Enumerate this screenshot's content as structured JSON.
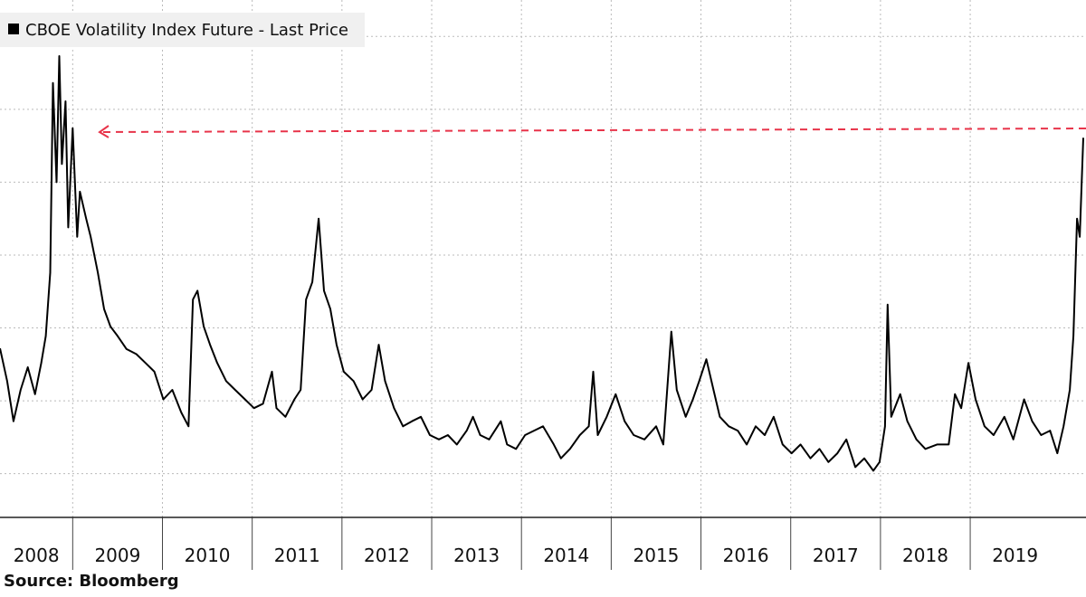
{
  "chart_data": {
    "type": "line",
    "legend": "top-left",
    "source": "Source: Bloomberg",
    "grid": true,
    "xlim": [
      2008.19,
      2020.29
    ],
    "ylim": [
      4,
      75
    ],
    "yticks": [
      10,
      20,
      30,
      40,
      50,
      60,
      70
    ],
    "xticks": [
      {
        "value": 2008,
        "label": "2008"
      },
      {
        "value": 2009,
        "label": "2009"
      },
      {
        "value": 2010,
        "label": "2010"
      },
      {
        "value": 2011,
        "label": "2011"
      },
      {
        "value": 2012,
        "label": "2012"
      },
      {
        "value": 2013,
        "label": "2013"
      },
      {
        "value": 2014,
        "label": "2014"
      },
      {
        "value": 2015,
        "label": "2015"
      },
      {
        "value": 2016,
        "label": "2016"
      },
      {
        "value": 2017,
        "label": "2017"
      },
      {
        "value": 2018,
        "label": "2018"
      },
      {
        "value": 2019,
        "label": "2019"
      }
    ],
    "x": [
      2008.19,
      2008.27,
      2008.34,
      2008.42,
      2008.5,
      2008.58,
      2008.65,
      2008.7,
      2008.75,
      2008.78,
      2008.82,
      2008.85,
      2008.88,
      2008.92,
      2008.95,
      2009.0,
      2009.05,
      2009.08,
      2009.15,
      2009.2,
      2009.28,
      2009.35,
      2009.42,
      2009.5,
      2009.6,
      2009.71,
      2009.81,
      2009.91,
      2010.01,
      2010.11,
      2010.21,
      2010.29,
      2010.34,
      2010.39,
      2010.46,
      2010.53,
      2010.61,
      2010.71,
      2010.81,
      2010.92,
      2011.02,
      2011.12,
      2011.22,
      2011.27,
      2011.37,
      2011.47,
      2011.54,
      2011.6,
      2011.67,
      2011.74,
      2011.8,
      2011.87,
      2011.94,
      2012.02,
      2012.13,
      2012.23,
      2012.33,
      2012.41,
      2012.48,
      2012.58,
      2012.68,
      2012.78,
      2012.88,
      2012.98,
      2013.08,
      2013.18,
      2013.28,
      2013.39,
      2013.46,
      2013.54,
      2013.64,
      2013.77,
      2013.84,
      2013.94,
      2014.04,
      2014.14,
      2014.24,
      2014.36,
      2014.44,
      2014.54,
      2014.65,
      2014.75,
      2014.8,
      2014.85,
      2014.95,
      2015.05,
      2015.15,
      2015.25,
      2015.37,
      2015.5,
      2015.58,
      2015.63,
      2015.67,
      2015.73,
      2015.83,
      2015.91,
      2015.98,
      2016.06,
      2016.14,
      2016.21,
      2016.31,
      2016.41,
      2016.51,
      2016.61,
      2016.71,
      2016.81,
      2016.91,
      2017.01,
      2017.11,
      2017.22,
      2017.32,
      2017.42,
      2017.52,
      2017.62,
      2017.72,
      2017.82,
      2017.92,
      2017.99,
      2018.05,
      2018.08,
      2018.12,
      2018.22,
      2018.3,
      2018.4,
      2018.5,
      2018.63,
      2018.76,
      2018.83,
      2018.9,
      2018.98,
      2019.06,
      2019.16,
      2019.26,
      2019.38,
      2019.48,
      2019.6,
      2019.69,
      2019.79,
      2019.89,
      2019.97,
      2020.04,
      2020.11,
      2020.15,
      2020.19,
      2020.22,
      2020.26
    ],
    "series": [
      {
        "name": "CBOE Volatility Index Future - Last Price",
        "color": "#000000",
        "values": [
          27.2,
          22.7,
          17.2,
          21.5,
          24.6,
          20.9,
          25.2,
          28.9,
          37.6,
          63.6,
          50.0,
          67.3,
          52.5,
          61.1,
          43.8,
          57.4,
          42.5,
          48.7,
          45.0,
          42.5,
          37.6,
          32.6,
          30.2,
          28.9,
          27.1,
          26.4,
          25.2,
          24.0,
          20.2,
          21.5,
          18.4,
          16.5,
          33.9,
          35.1,
          30.2,
          27.7,
          25.2,
          22.7,
          21.5,
          20.2,
          19.0,
          19.6,
          24.0,
          19.0,
          17.8,
          20.2,
          21.5,
          33.9,
          36.3,
          45.0,
          35.1,
          32.6,
          27.7,
          24.0,
          22.7,
          20.2,
          21.5,
          27.7,
          22.7,
          19.0,
          16.5,
          17.2,
          17.8,
          15.3,
          14.7,
          15.3,
          14.0,
          15.9,
          17.8,
          15.3,
          14.7,
          17.2,
          14.0,
          13.4,
          15.3,
          15.9,
          16.5,
          14.0,
          12.1,
          13.4,
          15.3,
          16.5,
          24.0,
          15.3,
          17.8,
          20.9,
          17.2,
          15.3,
          14.7,
          16.5,
          14.0,
          22.7,
          29.5,
          21.5,
          17.8,
          20.2,
          22.7,
          25.7,
          21.5,
          17.8,
          16.5,
          15.9,
          14.0,
          16.5,
          15.3,
          17.8,
          14.0,
          12.8,
          14.0,
          12.1,
          13.4,
          11.6,
          12.8,
          14.7,
          10.9,
          12.1,
          10.4,
          11.6,
          16.5,
          33.2,
          17.8,
          20.9,
          17.2,
          14.7,
          13.4,
          14.0,
          14.0,
          20.9,
          19.0,
          25.2,
          20.2,
          16.5,
          15.3,
          17.8,
          14.7,
          20.2,
          17.2,
          15.3,
          15.9,
          12.8,
          16.5,
          21.5,
          28.9,
          45.0,
          42.5,
          56.1
        ]
      }
    ]
  }
}
